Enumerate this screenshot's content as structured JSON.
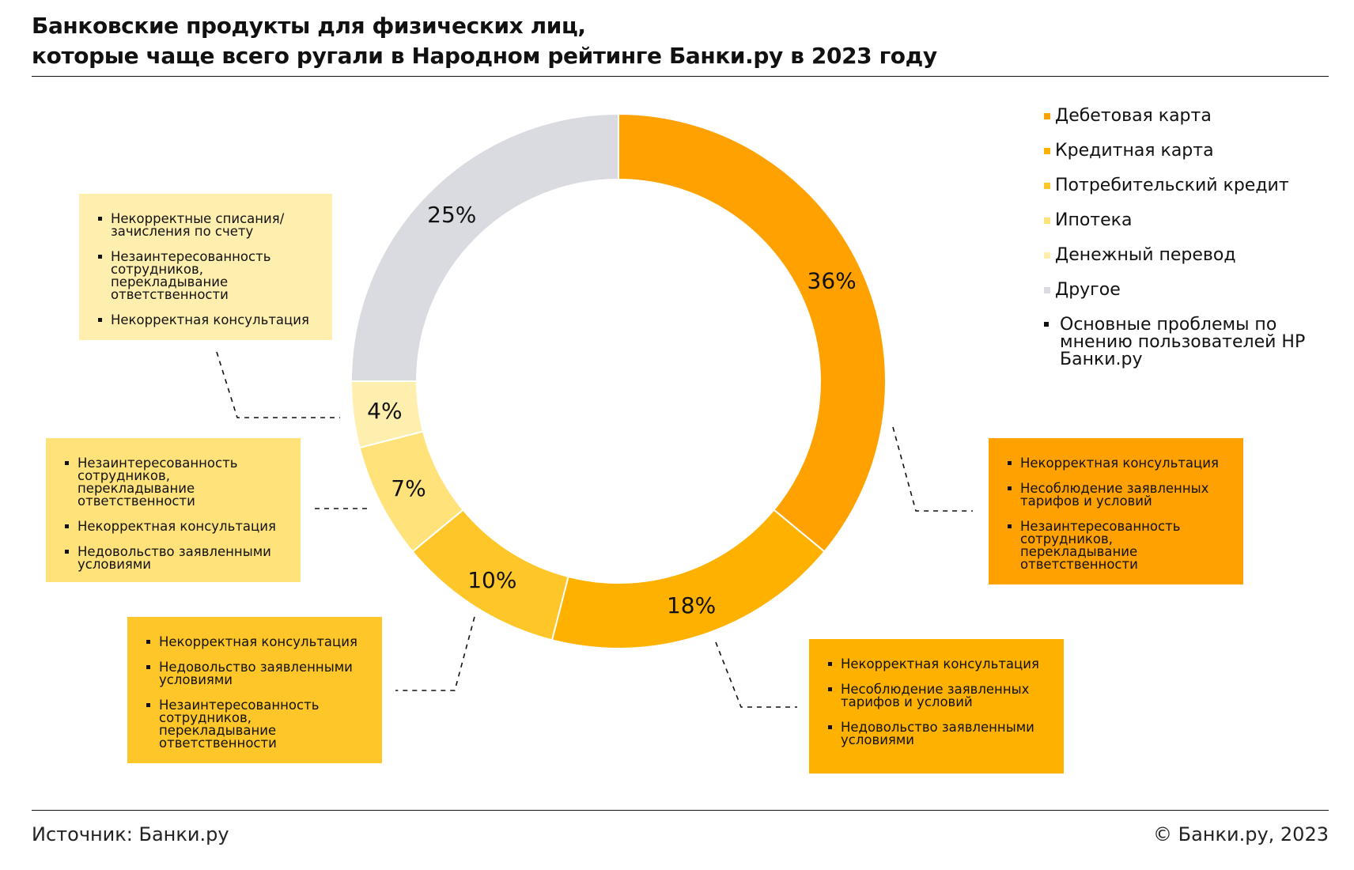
{
  "title": {
    "line1": "Банковские продукты для физических лиц,",
    "line2": "которые чаще всего ругали в Народном рейтинге Банки.ру в 2023 году"
  },
  "footer": {
    "source": "Источник: Банки.ру",
    "copyright": "© Банки.ру, 2023"
  },
  "chart_data": {
    "type": "pie",
    "title": "Банковские продукты для физических лиц, которые чаще всего ругали в Народном рейтинге Банки.ру в 2023 году",
    "categories": [
      "Дебетовая карта",
      "Кредитная карта",
      "Потребительский кредит",
      "Ипотека",
      "Денежный перевод",
      "Другое"
    ],
    "values": [
      36,
      18,
      10,
      7,
      4,
      25
    ],
    "labels": [
      "36%",
      "18%",
      "10%",
      "7%",
      "4%",
      "25%"
    ],
    "colors": [
      "#FFA100",
      "#FFB100",
      "#FFC629",
      "#FFE37A",
      "#FFEFAE",
      "#D9DBE1"
    ],
    "legend_position": "right",
    "donut": true
  },
  "legend": {
    "items": [
      {
        "label": "Дебетовая карта",
        "color": "#FFA100"
      },
      {
        "label": "Кредитная карта",
        "color": "#FFB100"
      },
      {
        "label": "Потребительский кредит",
        "color": "#FFC629"
      },
      {
        "label": "Ипотека",
        "color": "#FFE37A"
      },
      {
        "label": "Денежный перевод",
        "color": "#FFEFAE"
      },
      {
        "label": "Другое",
        "color": "#D9DBE1"
      }
    ],
    "note": "Основные проблемы по мнению пользователей НР Банки.ру"
  },
  "callouts": {
    "debit": {
      "color": "#FFA100",
      "items": [
        "Некорректная консультация",
        "Несоблюдение заявленных тарифов и условий",
        "Незаинтересованность сотрудников, перекладывание ответственности"
      ]
    },
    "credit": {
      "color": "#FFB100",
      "items": [
        "Некорректная консультация",
        "Несоблюдение заявленных тарифов и условий",
        "Недовольство заявленными условиями"
      ]
    },
    "consumer": {
      "color": "#FFC629",
      "items": [
        "Некорректная консультация",
        "Недовольство заявленными условиями",
        "Незаинтересованность сотрудников, перекладывание ответственности"
      ]
    },
    "mortgage": {
      "color": "#FFE37A",
      "items": [
        "Незаинтересованность сотрудников, перекладывание ответственности",
        "Некорректная консультация",
        "Недовольство заявленными условиями"
      ]
    },
    "transfer": {
      "color": "#FFEFAE",
      "items": [
        "Некорректные списания/ зачисления по счету",
        "Незаинтересованность сотрудников, перекладывание ответственности",
        "Некорректная консультация"
      ]
    }
  }
}
